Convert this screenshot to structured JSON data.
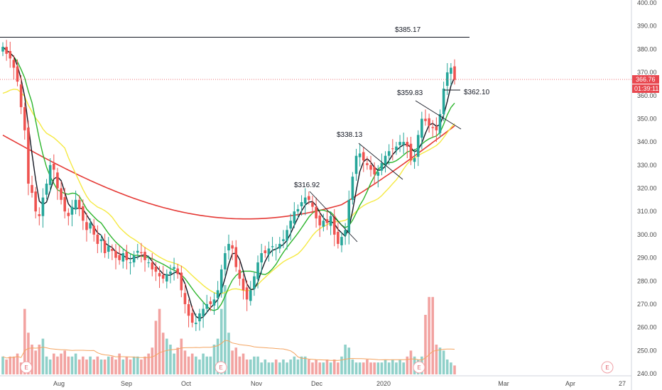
{
  "chart_data": {
    "type": "candlestick",
    "price_axis": {
      "ticks": [
        "400.00",
        "390.00",
        "380.00",
        "370.00",
        "360.00",
        "350.00",
        "340.00",
        "330.00",
        "320.00",
        "310.00",
        "300.00",
        "290.00",
        "280.00",
        "270.00",
        "260.00",
        "250.00",
        "240.00"
      ],
      "range": [
        240,
        400
      ]
    },
    "time_axis": {
      "labels": [
        "Aug",
        "Sep",
        "Oct",
        "Nov",
        "Dec",
        "2020",
        "Mar",
        "Apr",
        "27"
      ]
    },
    "current_price": "366.76",
    "countdown": "01:39:11",
    "colors": {
      "up": "#26a69a",
      "down": "#ef5350",
      "ma_black": "#131722",
      "ma_green": "#2db52d",
      "ma_yellow": "#f5e942",
      "ma_red": "#e53935",
      "vol_ma": "#f4a460",
      "price_tag": "#e8474f"
    },
    "annotations": [
      {
        "label": "$385.17",
        "price": 385.17
      },
      {
        "label": "$316.92",
        "price": 316.92
      },
      {
        "label": "$338.13",
        "price": 338.13
      },
      {
        "label": "$359.83",
        "price": 359.83
      },
      {
        "label": "$362.10",
        "price": 362.1
      }
    ],
    "earnings_marker": "E",
    "close_series": [
      381,
      378,
      376,
      372,
      366,
      355,
      345,
      322,
      318,
      310,
      308,
      316,
      322,
      330,
      328,
      320,
      315,
      310,
      308,
      312,
      315,
      311,
      306,
      302,
      305,
      300,
      296,
      298,
      292,
      295,
      293,
      290,
      289,
      292,
      289,
      288,
      291,
      293,
      292,
      289,
      288,
      285,
      284,
      282,
      281,
      283,
      284,
      286,
      283,
      276,
      270,
      265,
      262,
      262,
      266,
      268,
      270,
      270,
      272,
      276,
      285,
      292,
      296,
      294,
      286,
      281,
      276,
      272,
      276,
      282,
      288,
      292,
      292,
      294,
      295,
      294,
      296,
      298,
      302,
      306,
      310,
      311,
      314,
      316,
      315,
      312,
      307,
      304,
      306,
      305,
      308,
      300,
      296,
      299,
      302,
      315,
      325,
      334,
      335,
      332,
      330,
      328,
      326,
      327,
      331,
      334,
      336,
      337,
      338,
      340,
      340,
      338,
      332,
      333,
      343,
      350,
      349,
      347,
      346,
      345,
      352,
      363,
      370,
      372,
      366.76
    ],
    "volume_series": [
      6,
      5,
      6,
      6,
      7,
      4,
      22,
      14,
      10,
      8,
      10,
      12,
      6,
      5,
      7,
      6,
      7,
      8,
      6,
      6,
      7,
      5,
      6,
      5,
      6,
      5,
      6,
      5,
      5,
      6,
      6,
      5,
      7,
      5,
      6,
      5,
      6,
      6,
      5,
      6,
      7,
      9,
      18,
      22,
      14,
      12,
      10,
      7,
      9,
      12,
      8,
      6,
      7,
      6,
      5,
      7,
      6,
      6,
      10,
      12,
      22,
      30,
      14,
      8,
      9,
      6,
      7,
      5,
      5,
      6,
      6,
      4,
      5,
      4,
      4,
      5,
      4,
      5,
      4,
      5,
      6,
      5,
      6,
      6,
      5,
      4,
      5,
      4,
      4,
      5,
      4,
      5,
      4,
      6,
      10,
      9,
      5,
      4,
      4,
      4,
      5,
      4,
      4,
      4,
      4,
      5,
      4,
      5,
      4,
      5,
      4,
      6,
      8,
      6,
      5,
      6,
      20,
      26,
      26,
      10,
      9,
      8,
      5,
      4,
      3
    ]
  }
}
